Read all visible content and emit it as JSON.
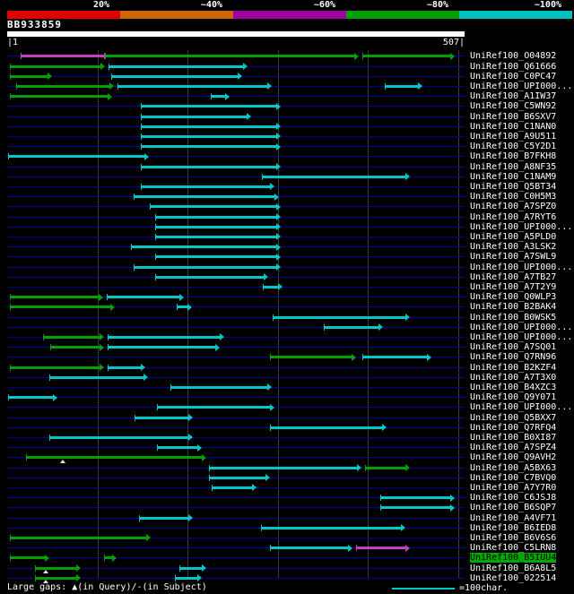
{
  "colors": {
    "background": "#000000",
    "bar_cyan": "#00c8c8",
    "bar_green": "#00a000",
    "bar_magenta": "#c040c0",
    "row_line": "#000099",
    "grid_line": "#3c3c3c",
    "query_bar": "#ffffff",
    "selected_label_bg": "#00a800",
    "selected_label_fg": "#000000",
    "label_text": "#ffffff"
  },
  "scale_bar": {
    "segments": [
      {
        "name": "red",
        "label": "20%",
        "color": "#e00000"
      },
      {
        "name": "orange",
        "label": "~40%",
        "color": "#cc6600"
      },
      {
        "name": "purple",
        "label": "~60%",
        "color": "#a000a0"
      },
      {
        "name": "green",
        "label": "~80%",
        "color": "#00a000"
      },
      {
        "name": "cyan",
        "label": "~100%",
        "color": "#00c0c0"
      }
    ]
  },
  "query": {
    "name": "BB933859",
    "left_coord": "|1",
    "right_coord": "507|",
    "length": 507
  },
  "footer": {
    "gaps_note": "Large gaps: ▲(in Query)/-(in Subject)",
    "legend_label": "=100char."
  },
  "chart_data": {
    "type": "bar",
    "subtype": "blast-alignment-overview",
    "title": "BB933859",
    "x_domain": [
      1,
      507
    ],
    "x_unit": "characters",
    "gridlines": [
      100,
      200,
      300,
      400,
      500
    ],
    "legend": {
      "label": "=100char.",
      "line_length_chars": 100,
      "position": "bottom-right"
    },
    "rows": [
      {
        "label": "UniRef100_O04892",
        "selected": false,
        "gaps": [],
        "segments": [
          {
            "s": 15,
            "e": 108,
            "c": "magenta",
            "a": false
          },
          {
            "s": 108,
            "e": 390,
            "c": "green",
            "a": true
          },
          {
            "s": 394,
            "e": 496,
            "c": "green",
            "a": true
          }
        ]
      },
      {
        "label": "UniRef100_Q61666",
        "selected": false,
        "gaps": [],
        "segments": [
          {
            "s": 3,
            "e": 108,
            "c": "green",
            "a": true
          },
          {
            "s": 112,
            "e": 266,
            "c": "cyan",
            "a": true
          }
        ]
      },
      {
        "label": "UniRef100_C0PC47",
        "selected": false,
        "gaps": [],
        "segments": [
          {
            "s": 3,
            "e": 50,
            "c": "green",
            "a": true
          },
          {
            "s": 115,
            "e": 260,
            "c": "cyan",
            "a": true
          }
        ]
      },
      {
        "label": "UniRef100_UPI000...",
        "selected": false,
        "gaps": [],
        "segments": [
          {
            "s": 10,
            "e": 118,
            "c": "green",
            "a": true
          },
          {
            "s": 122,
            "e": 293,
            "c": "cyan",
            "a": true
          },
          {
            "s": 418,
            "e": 460,
            "c": "cyan",
            "a": true
          }
        ]
      },
      {
        "label": "UniRef100_A1IW37",
        "selected": false,
        "gaps": [],
        "segments": [
          {
            "s": 3,
            "e": 116,
            "c": "green",
            "a": true
          },
          {
            "s": 226,
            "e": 246,
            "c": "cyan",
            "a": true
          }
        ]
      },
      {
        "label": "UniRef100_C5WN92",
        "selected": false,
        "gaps": [],
        "segments": [
          {
            "s": 148,
            "e": 303,
            "c": "cyan",
            "a": true
          }
        ]
      },
      {
        "label": "UniRef100_B6SXV7",
        "selected": false,
        "gaps": [],
        "segments": [
          {
            "s": 148,
            "e": 270,
            "c": "cyan",
            "a": true
          }
        ]
      },
      {
        "label": "UniRef100_C1NAN0",
        "selected": false,
        "gaps": [],
        "segments": [
          {
            "s": 148,
            "e": 303,
            "c": "cyan",
            "a": true
          }
        ]
      },
      {
        "label": "UniRef100_A9U511",
        "selected": false,
        "gaps": [],
        "segments": [
          {
            "s": 148,
            "e": 303,
            "c": "cyan",
            "a": true
          }
        ]
      },
      {
        "label": "UniRef100_C5Y2D1",
        "selected": false,
        "gaps": [],
        "segments": [
          {
            "s": 148,
            "e": 303,
            "c": "cyan",
            "a": true
          }
        ]
      },
      {
        "label": "UniRef100_B7FKH8",
        "selected": false,
        "gaps": [],
        "segments": [
          {
            "s": 1,
            "e": 157,
            "c": "cyan",
            "a": true
          }
        ]
      },
      {
        "label": "UniRef100_A8NF35",
        "selected": false,
        "gaps": [],
        "segments": [
          {
            "s": 148,
            "e": 303,
            "c": "cyan",
            "a": true
          }
        ]
      },
      {
        "label": "UniRef100_C1NAM9",
        "selected": false,
        "gaps": [],
        "segments": [
          {
            "s": 282,
            "e": 446,
            "c": "cyan",
            "a": true
          }
        ]
      },
      {
        "label": "UniRef100_Q5BT34",
        "selected": false,
        "gaps": [],
        "segments": [
          {
            "s": 148,
            "e": 296,
            "c": "cyan",
            "a": true
          }
        ]
      },
      {
        "label": "UniRef100_C0H5M3",
        "selected": false,
        "gaps": [],
        "segments": [
          {
            "s": 140,
            "e": 301,
            "c": "cyan",
            "a": true
          }
        ]
      },
      {
        "label": "UniRef100_A7SPZ0",
        "selected": false,
        "gaps": [],
        "segments": [
          {
            "s": 158,
            "e": 303,
            "c": "cyan",
            "a": true
          }
        ]
      },
      {
        "label": "UniRef100_A7RYT6",
        "selected": false,
        "gaps": [],
        "segments": [
          {
            "s": 164,
            "e": 303,
            "c": "cyan",
            "a": true
          }
        ]
      },
      {
        "label": "UniRef100_UPI000...",
        "selected": false,
        "gaps": [],
        "segments": [
          {
            "s": 164,
            "e": 303,
            "c": "cyan",
            "a": true
          }
        ]
      },
      {
        "label": "UniRef100_A5PLD0",
        "selected": false,
        "gaps": [],
        "segments": [
          {
            "s": 164,
            "e": 303,
            "c": "cyan",
            "a": true
          }
        ]
      },
      {
        "label": "UniRef100_A3LSK2",
        "selected": false,
        "gaps": [],
        "segments": [
          {
            "s": 137,
            "e": 303,
            "c": "cyan",
            "a": true
          }
        ]
      },
      {
        "label": "UniRef100_A7SWL9",
        "selected": false,
        "gaps": [],
        "segments": [
          {
            "s": 164,
            "e": 303,
            "c": "cyan",
            "a": true
          }
        ]
      },
      {
        "label": "UniRef100_UPI000...",
        "selected": false,
        "gaps": [],
        "segments": [
          {
            "s": 140,
            "e": 303,
            "c": "cyan",
            "a": true
          }
        ]
      },
      {
        "label": "UniRef100_A7TB27",
        "selected": false,
        "gaps": [],
        "segments": [
          {
            "s": 164,
            "e": 289,
            "c": "cyan",
            "a": true
          }
        ]
      },
      {
        "label": "UniRef100_A7T2Y9",
        "selected": false,
        "gaps": [],
        "segments": [
          {
            "s": 283,
            "e": 305,
            "c": "cyan",
            "a": true
          }
        ]
      },
      {
        "label": "UniRef100_Q0WLP3",
        "selected": false,
        "gaps": [],
        "segments": [
          {
            "s": 3,
            "e": 106,
            "c": "green",
            "a": true
          },
          {
            "s": 110,
            "e": 196,
            "c": "cyan",
            "a": true
          }
        ]
      },
      {
        "label": "UniRef100_B2BAK4",
        "selected": false,
        "gaps": [],
        "segments": [
          {
            "s": 3,
            "e": 119,
            "c": "green",
            "a": true
          },
          {
            "s": 188,
            "e": 205,
            "c": "cyan",
            "a": true
          }
        ]
      },
      {
        "label": "UniRef100_B0WSK5",
        "selected": false,
        "gaps": [],
        "segments": [
          {
            "s": 294,
            "e": 446,
            "c": "cyan",
            "a": true
          }
        ]
      },
      {
        "label": "UniRef100_UPI000...",
        "selected": false,
        "gaps": [],
        "segments": [
          {
            "s": 351,
            "e": 416,
            "c": "cyan",
            "a": true
          }
        ]
      },
      {
        "label": "UniRef100_UPI000...",
        "selected": false,
        "gaps": [],
        "segments": [
          {
            "s": 40,
            "e": 107,
            "c": "green",
            "a": true
          },
          {
            "s": 111,
            "e": 241,
            "c": "cyan",
            "a": true
          }
        ]
      },
      {
        "label": "UniRef100_A7SQ01",
        "selected": false,
        "gaps": [],
        "segments": [
          {
            "s": 48,
            "e": 107,
            "c": "green",
            "a": true
          },
          {
            "s": 111,
            "e": 236,
            "c": "cyan",
            "a": true
          }
        ]
      },
      {
        "label": "UniRef100_Q7RN96",
        "selected": false,
        "gaps": [],
        "segments": [
          {
            "s": 291,
            "e": 387,
            "c": "green",
            "a": true
          },
          {
            "s": 394,
            "e": 470,
            "c": "cyan",
            "a": true
          }
        ]
      },
      {
        "label": "UniRef100_B2KZF4",
        "selected": false,
        "gaps": [],
        "segments": [
          {
            "s": 3,
            "e": 107,
            "c": "green",
            "a": true
          },
          {
            "s": 111,
            "e": 153,
            "c": "cyan",
            "a": true
          }
        ]
      },
      {
        "label": "UniRef100_A7T3X0",
        "selected": false,
        "gaps": [],
        "segments": [
          {
            "s": 47,
            "e": 156,
            "c": "cyan",
            "a": true
          }
        ]
      },
      {
        "label": "UniRef100_B4XZC3",
        "selected": false,
        "gaps": [],
        "segments": [
          {
            "s": 181,
            "e": 293,
            "c": "cyan",
            "a": true
          }
        ]
      },
      {
        "label": "UniRef100_Q9Y071",
        "selected": false,
        "gaps": [],
        "segments": [
          {
            "s": 1,
            "e": 56,
            "c": "cyan",
            "a": true
          }
        ]
      },
      {
        "label": "UniRef100_UPI000...",
        "selected": false,
        "gaps": [],
        "segments": [
          {
            "s": 166,
            "e": 296,
            "c": "cyan",
            "a": true
          }
        ]
      },
      {
        "label": "UniRef100_Q5BXX7",
        "selected": false,
        "gaps": [],
        "segments": [
          {
            "s": 141,
            "e": 206,
            "c": "cyan",
            "a": true
          }
        ]
      },
      {
        "label": "UniRef100_Q7RFQ4",
        "selected": false,
        "gaps": [],
        "segments": [
          {
            "s": 291,
            "e": 420,
            "c": "cyan",
            "a": true
          }
        ]
      },
      {
        "label": "UniRef100_B0XI87",
        "selected": false,
        "gaps": [],
        "segments": [
          {
            "s": 47,
            "e": 206,
            "c": "cyan",
            "a": true
          }
        ]
      },
      {
        "label": "UniRef100_A7SPZ4",
        "selected": false,
        "gaps": [],
        "segments": [
          {
            "s": 166,
            "e": 216,
            "c": "cyan",
            "a": true
          }
        ]
      },
      {
        "label": "UniRef100_Q9AVH2",
        "selected": false,
        "gaps": [
          62
        ],
        "segments": [
          {
            "s": 21,
            "e": 221,
            "c": "green",
            "a": true
          }
        ]
      },
      {
        "label": "UniRef100_A5BX63",
        "selected": false,
        "gaps": [],
        "segments": [
          {
            "s": 224,
            "e": 393,
            "c": "cyan",
            "a": true
          },
          {
            "s": 397,
            "e": 446,
            "c": "green",
            "a": true
          }
        ]
      },
      {
        "label": "UniRef100_C7BVQ0",
        "selected": false,
        "gaps": [],
        "segments": [
          {
            "s": 224,
            "e": 291,
            "c": "cyan",
            "a": true
          }
        ]
      },
      {
        "label": "UniRef100_A7Y7R0",
        "selected": false,
        "gaps": [],
        "segments": [
          {
            "s": 227,
            "e": 276,
            "c": "cyan",
            "a": true
          }
        ]
      },
      {
        "label": "UniRef100_C6JSJ8",
        "selected": false,
        "gaps": [],
        "segments": [
          {
            "s": 414,
            "e": 496,
            "c": "cyan",
            "a": true
          }
        ]
      },
      {
        "label": "UniRef100_B6SQP7",
        "selected": false,
        "gaps": [],
        "segments": [
          {
            "s": 414,
            "e": 496,
            "c": "cyan",
            "a": true
          }
        ]
      },
      {
        "label": "UniRef100_A4VF71",
        "selected": false,
        "gaps": [],
        "segments": [
          {
            "s": 146,
            "e": 206,
            "c": "cyan",
            "a": true
          }
        ]
      },
      {
        "label": "UniRef100_B6IED8",
        "selected": false,
        "gaps": [],
        "segments": [
          {
            "s": 281,
            "e": 441,
            "c": "cyan",
            "a": true
          }
        ]
      },
      {
        "label": "UniRef100_B6V6S6",
        "selected": false,
        "gaps": [],
        "segments": [
          {
            "s": 3,
            "e": 159,
            "c": "green",
            "a": true
          }
        ]
      },
      {
        "label": "UniRef100_C5LRN8",
        "selected": false,
        "gaps": [],
        "segments": [
          {
            "s": 291,
            "e": 383,
            "c": "cyan",
            "a": true
          },
          {
            "s": 387,
            "e": 446,
            "c": "magenta",
            "a": true
          }
        ]
      },
      {
        "label": "UniRef100_B5IUU4",
        "selected": true,
        "gaps": [],
        "segments": [
          {
            "s": 3,
            "e": 47,
            "c": "green",
            "a": true
          },
          {
            "s": 107,
            "e": 121,
            "c": "green",
            "a": true
          }
        ]
      },
      {
        "label": "UniRef100_B6A8L5",
        "selected": false,
        "gaps": [
          43
        ],
        "segments": [
          {
            "s": 31,
            "e": 81,
            "c": "green",
            "a": true
          },
          {
            "s": 191,
            "e": 221,
            "c": "cyan",
            "a": true
          }
        ]
      },
      {
        "label": "UniRef100_022514",
        "selected": false,
        "gaps": [
          43
        ],
        "segments": [
          {
            "s": 31,
            "e": 81,
            "c": "green",
            "a": true
          },
          {
            "s": 186,
            "e": 216,
            "c": "cyan",
            "a": true
          }
        ]
      }
    ]
  }
}
